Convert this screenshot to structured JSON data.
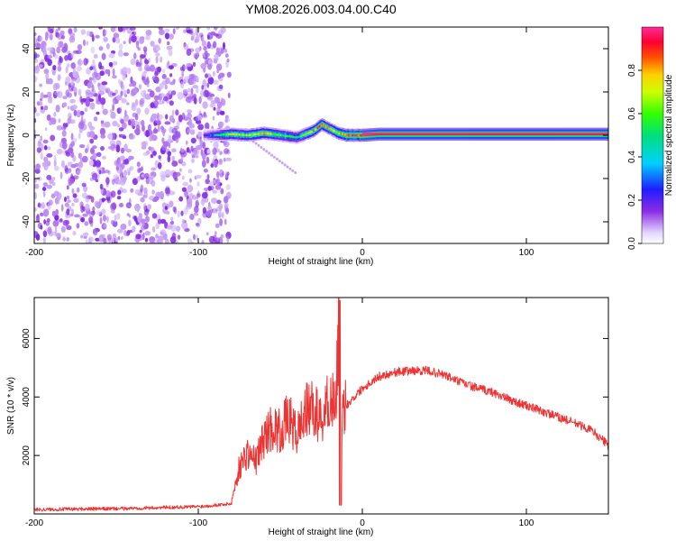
{
  "chart_data": [
    {
      "type": "heatmap",
      "title": "YM08.2026.003.04.00.C40",
      "xlabel": "Height of straight line (km)",
      "ylabel": "Frequency (Hz)",
      "xlim": [
        -200,
        150
      ],
      "ylim": [
        -50,
        50
      ],
      "xticks": [
        -200,
        -100,
        0,
        100
      ],
      "yticks": [
        -40,
        -20,
        0,
        20,
        40
      ],
      "colorbar": {
        "label": "Normalized spectral amplitude",
        "range": [
          0,
          1
        ],
        "ticks": [
          0.0,
          0.2,
          0.4,
          0.6,
          0.8
        ]
      },
      "noise_region_x": [
        -200,
        -85
      ],
      "ridge": {
        "x": [
          -97,
          -90,
          -80,
          -70,
          -60,
          -50,
          -40,
          -30,
          -25,
          -20,
          -15,
          -10,
          0,
          10,
          50,
          100,
          150
        ],
        "freq": [
          0,
          0,
          0.5,
          0,
          1,
          0,
          -1,
          2,
          5,
          3,
          1,
          0,
          0,
          0.5,
          0.5,
          0.5,
          0.5
        ],
        "amplitude": [
          0.2,
          0.4,
          0.75,
          0.7,
          0.8,
          0.65,
          0.55,
          0.85,
          0.9,
          0.75,
          0.8,
          0.95,
          1,
          0.95,
          0.95,
          0.95,
          0.95
        ]
      }
    },
    {
      "type": "line",
      "title": "",
      "xlabel": "Height of straight line (km)",
      "ylabel": "SNR (10 * v/v)",
      "xlim": [
        -200,
        150
      ],
      "ylim": [
        0,
        7400
      ],
      "xticks": [
        -200,
        -100,
        0,
        100
      ],
      "yticks": [
        2000,
        4000,
        6000
      ],
      "series": [
        {
          "name": "SNR",
          "color": "#ee3333",
          "x": [
            -200,
            -150,
            -100,
            -80,
            -75,
            -70,
            -65,
            -60,
            -55,
            -50,
            -45,
            -40,
            -35,
            -30,
            -25,
            -20,
            -16,
            -14,
            -13,
            -12,
            -10,
            -5,
            0,
            10,
            20,
            30,
            40,
            50,
            60,
            70,
            80,
            90,
            100,
            110,
            120,
            130,
            140,
            150
          ],
          "y": [
            150,
            180,
            250,
            350,
            1600,
            2100,
            1800,
            2600,
            3000,
            2800,
            3300,
            2700,
            3500,
            3600,
            3200,
            4000,
            3800,
            7300,
            300,
            3600,
            3700,
            4000,
            4300,
            4700,
            4850,
            4900,
            4900,
            4750,
            4500,
            4300,
            4150,
            3900,
            3700,
            3500,
            3300,
            3100,
            2850,
            2350
          ]
        }
      ]
    }
  ],
  "colors": {
    "line": "#ee3333",
    "frame": "#000000",
    "background": "#ffffff"
  }
}
